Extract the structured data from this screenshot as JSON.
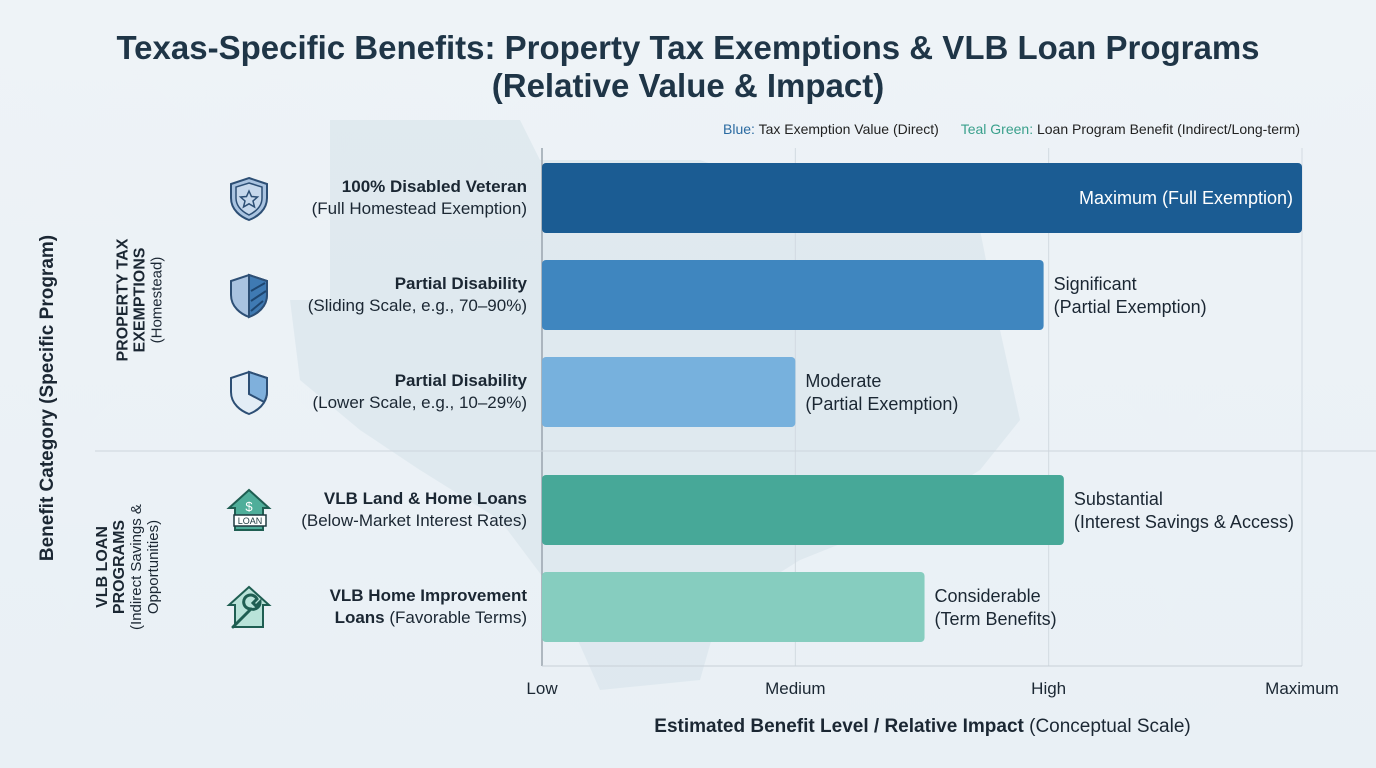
{
  "title_line1": "Texas-Specific Benefits: Property Tax Exemptions & VLB Loan Programs",
  "title_line2": "(Relative Value & Impact)",
  "legend": {
    "blue_key": "Blue:",
    "blue_text": "Tax Exemption Value (Direct)",
    "teal_key": "Teal Green:",
    "teal_text": "Loan Program Benefit (Indirect/Long-term)"
  },
  "groups": [
    {
      "title": "PROPERTY TAX EXEMPTIONS",
      "subtitle": "(Homestead)"
    },
    {
      "title": "VLB LOAN PROGRAMS",
      "subtitle": "(Indirect Savings & Opportunities)"
    }
  ],
  "chart_data": {
    "type": "bar",
    "orientation": "horizontal",
    "ylabel": "Benefit Category (Specific Program)",
    "xlabel_bold": "Estimated Benefit Level / Relative Impact",
    "xlabel_rest": "(Conceptual Scale)",
    "x_ticks": [
      "Low",
      "Medium",
      "High",
      "Maximum"
    ],
    "xlim": [
      0,
      3
    ],
    "grid": true,
    "legend_placement": "top-right",
    "categories": [
      {
        "bold": "100% Disabled Veteran",
        "rest": "(Full Homestead Exemption)",
        "value": 3.0,
        "label": "Maximum (Full Exemption)",
        "label_inside": true,
        "color": "#1b5c93",
        "group": 0,
        "icon": "shield-star-icon"
      },
      {
        "bold": "Partial Disability",
        "rest": "(Sliding Scale, e.g., 70–90%)",
        "value": 1.98,
        "label": "Significant",
        "label2": "(Partial Exemption)",
        "color": "#3f86bf",
        "group": 0,
        "icon": "shield-half-icon"
      },
      {
        "bold": "Partial Disability",
        "rest": "(Lower Scale, e.g., 10–29%)",
        "value": 1.0,
        "label": "Moderate",
        "label2": "(Partial Exemption)",
        "color": "#77b1dd",
        "group": 0,
        "icon": "shield-quarter-icon"
      },
      {
        "bold": "VLB Land & Home Loans",
        "rest": "(Below-Market Interest Rates)",
        "value": 2.06,
        "label": "Substantial",
        "label2": "(Interest Savings & Access)",
        "color": "#47a898",
        "group": 1,
        "icon": "house-loan-icon"
      },
      {
        "bold": "VLB Home Improvement",
        "bold2": "Loans",
        "rest": "(Favorable Terms)",
        "value": 1.51,
        "label": "Considerable",
        "label2": "(Term Benefits)",
        "color": "#86cdbf",
        "group": 1,
        "icon": "house-wrench-icon"
      }
    ]
  }
}
